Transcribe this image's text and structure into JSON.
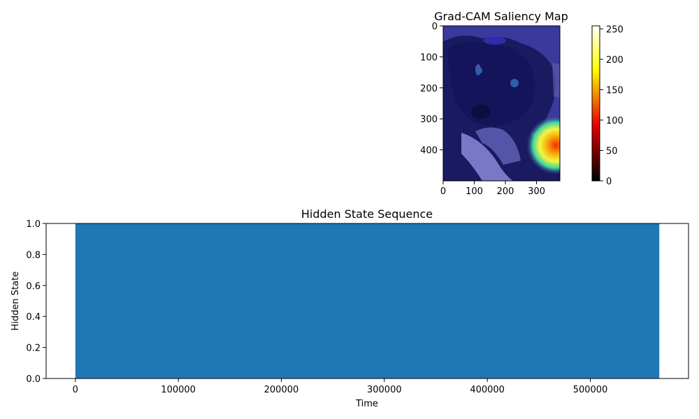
{
  "chart_data": [
    {
      "type": "heatmap",
      "title": "Grad-CAM Saliency Map",
      "xlabel": "",
      "ylabel": "",
      "x_ticks": [
        0,
        100,
        200,
        300
      ],
      "y_ticks": [
        0,
        100,
        200,
        300,
        400
      ],
      "xlim": [
        0,
        375
      ],
      "ylim": [
        500,
        0
      ],
      "image_description": "Photo of a black and white puppy overlaid with a jet-colormap saliency heatmap; mostly dark blue with a hot spot (yellow/red) near the lower-right corner",
      "hotspot": {
        "x": 365,
        "y": 370,
        "peak_value": 255
      },
      "colorbar": {
        "colormap": "hot",
        "range": [
          0,
          255
        ],
        "ticks": [
          0,
          50,
          100,
          150,
          200,
          250
        ]
      },
      "overlay_color": "#3f3fa8"
    },
    {
      "type": "area",
      "title": "Hidden State Sequence",
      "xlabel": "Time",
      "ylabel": "Hidden State",
      "x_range": [
        0,
        567000
      ],
      "xlim": [
        -28350,
        595350
      ],
      "ylim": [
        0,
        1
      ],
      "fill_value": 1.0,
      "x_ticks": [
        0,
        100000,
        200000,
        300000,
        400000,
        500000
      ],
      "y_ticks": [
        "0.0",
        "0.2",
        "0.4",
        "0.6",
        "0.8",
        "1.0"
      ],
      "color": "#1f77b4"
    }
  ]
}
